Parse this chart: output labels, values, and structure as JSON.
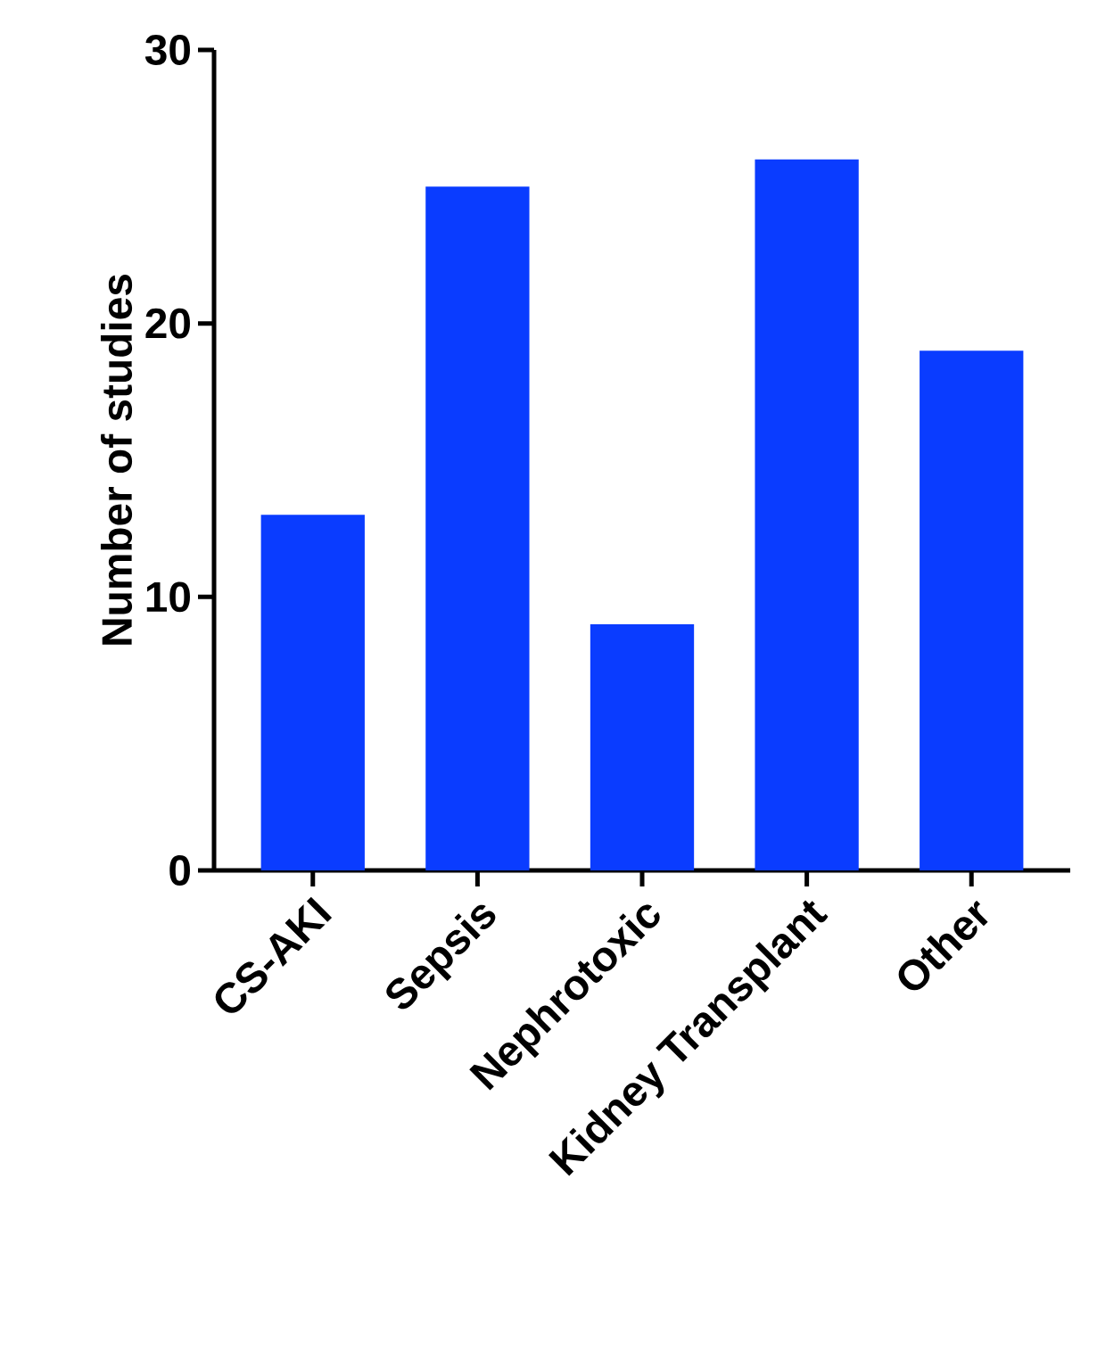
{
  "chart_data": {
    "type": "bar",
    "ylabel": "Number of studies",
    "categories": [
      "CS-AKI",
      "Sepsis",
      "Nephrotoxic",
      "Kidney Transplant",
      "Other"
    ],
    "values": [
      13,
      25,
      9,
      26,
      19
    ],
    "color": "#0a3cff",
    "ylim": [
      0,
      30
    ],
    "yticks": [
      0,
      10,
      20,
      30
    ]
  }
}
